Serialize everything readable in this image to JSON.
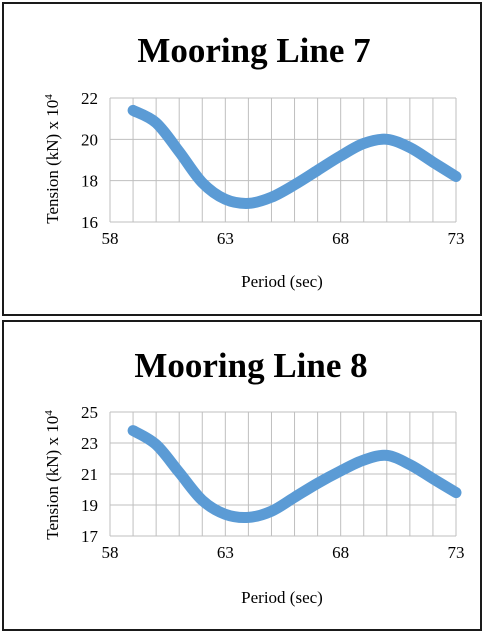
{
  "chart_data": [
    {
      "type": "line",
      "title": "Mooring Line 7",
      "xlabel": "Period (sec)",
      "ylabel": "Tension (kN) x 10",
      "ylabel_exponent": "4",
      "xlim": [
        58,
        73
      ],
      "ylim": [
        16,
        22
      ],
      "xticks": [
        58,
        63,
        68,
        73
      ],
      "yticks": [
        16,
        18,
        20,
        22
      ],
      "x_gridlines": [
        58,
        59,
        60,
        61,
        62,
        63,
        64,
        65,
        66,
        67,
        68,
        69,
        70,
        71,
        72,
        73
      ],
      "grid": true,
      "series_color": "#5B9BD5",
      "series": [
        {
          "x": [
            59,
            60,
            61,
            62,
            63,
            64,
            65,
            66,
            67,
            68,
            69,
            70,
            71,
            72,
            73
          ],
          "values": [
            21.4,
            20.8,
            19.4,
            17.9,
            17.1,
            16.9,
            17.2,
            17.8,
            18.5,
            19.2,
            19.8,
            20.0,
            19.6,
            18.9,
            18.2
          ]
        }
      ]
    },
    {
      "type": "line",
      "title": "Mooring Line 8",
      "xlabel": "Period (sec)",
      "ylabel": "Tension (kN) x 10",
      "ylabel_exponent": "4",
      "xlim": [
        58,
        73
      ],
      "ylim": [
        17,
        25
      ],
      "xticks": [
        58,
        63,
        68,
        73
      ],
      "yticks": [
        17,
        19,
        21,
        23,
        25
      ],
      "x_gridlines": [
        58,
        59,
        60,
        61,
        62,
        63,
        64,
        65,
        66,
        67,
        68,
        69,
        70,
        71,
        72,
        73
      ],
      "grid": true,
      "series_color": "#5B9BD5",
      "series": [
        {
          "x": [
            59,
            60,
            61,
            62,
            63,
            64,
            65,
            66,
            67,
            68,
            69,
            70,
            71,
            72,
            73
          ],
          "values": [
            23.8,
            22.9,
            21.1,
            19.3,
            18.4,
            18.2,
            18.6,
            19.5,
            20.4,
            21.2,
            21.9,
            22.2,
            21.6,
            20.7,
            19.8
          ]
        }
      ]
    }
  ]
}
